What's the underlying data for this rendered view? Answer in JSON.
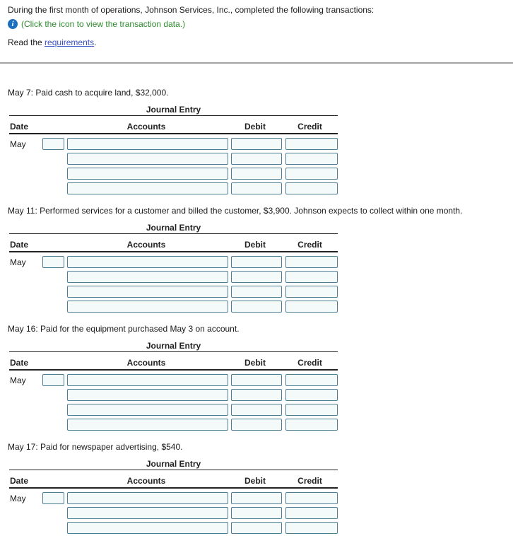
{
  "intro": {
    "line1": "During the first month of operations, Johnson Services, Inc., completed the following transactions:",
    "info_icon": "i",
    "icon_caption": "(Click the icon to view the transaction data.)",
    "read_prefix": "Read the ",
    "requirements_link": "requirements",
    "read_suffix": "."
  },
  "journal": {
    "title": "Journal Entry",
    "columns": {
      "date": "Date",
      "accounts": "Accounts",
      "debit": "Debit",
      "credit": "Credit"
    },
    "month_label": "May",
    "rows_per_entry": 4,
    "day_value": "",
    "account_value": "",
    "debit_value": "",
    "credit_value": ""
  },
  "transactions": [
    {
      "prompt": "May 7: Paid cash to acquire land, $32,000."
    },
    {
      "prompt": "May 11: Performed services for a customer and billed the customer, $3,900. Johnson expects to collect within one month."
    },
    {
      "prompt": "May 16: Paid for the equipment purchased May 3 on account."
    },
    {
      "prompt": "May 17: Paid for newspaper advertising, $540."
    }
  ],
  "colors": {
    "input_border": "#4d7e94",
    "input_fill": "#f4fafa",
    "green_text": "#2e8b2e",
    "link_blue": "#3a53c5",
    "info_icon_blue": "#1b6fc1",
    "table_line": "#222222",
    "divider_gray": "#a3a3a3"
  }
}
